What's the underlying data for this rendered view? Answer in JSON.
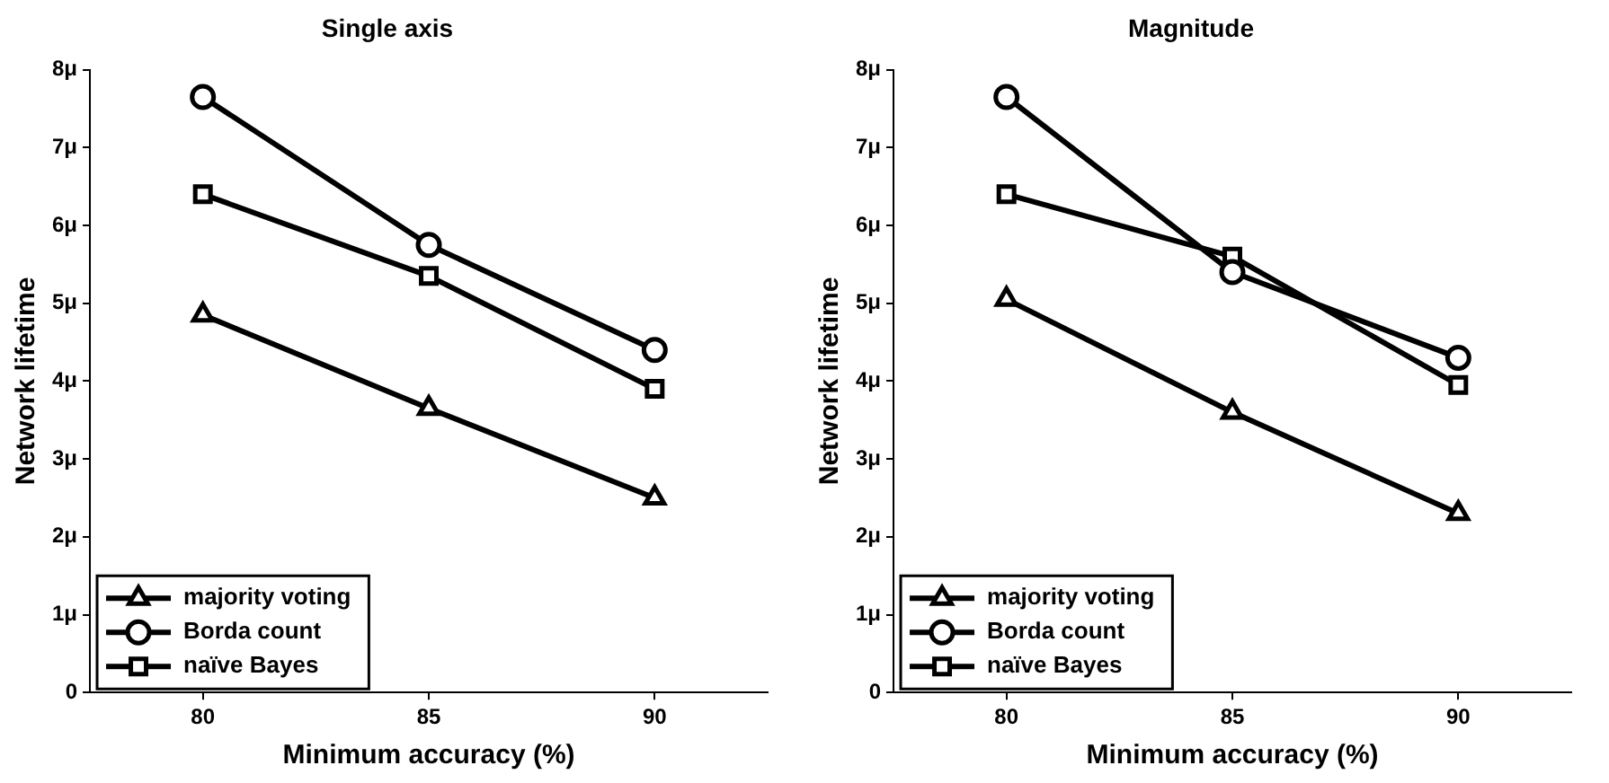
{
  "chart_data": [
    {
      "type": "line",
      "title": "Single axis",
      "xlabel": "Minimum accuracy (%)",
      "ylabel": "Network lifetime",
      "x": [
        80,
        85,
        90
      ],
      "xlim": [
        77.5,
        92.5
      ],
      "xticks": [
        80,
        85,
        90
      ],
      "ylim": [
        0,
        8
      ],
      "yticks": [
        0,
        {
          "value": 1,
          "label": "1μ"
        },
        {
          "value": 2,
          "label": "2μ"
        },
        {
          "value": 3,
          "label": "3μ"
        },
        {
          "value": 4,
          "label": "4μ"
        },
        {
          "value": 5,
          "label": "5μ"
        },
        {
          "value": 6,
          "label": "6μ"
        },
        {
          "value": 7,
          "label": "7μ"
        },
        {
          "value": 8,
          "label": "8μ"
        }
      ],
      "grid": false,
      "legend": "bottom left",
      "line_style": "solid",
      "series": [
        {
          "name": "majority voting",
          "color": "#000000",
          "marker": "triangle",
          "values": [
            4.85,
            3.65,
            2.5
          ]
        },
        {
          "name": "Borda count",
          "color": "#000000",
          "marker": "circle",
          "values": [
            7.65,
            5.75,
            4.4
          ]
        },
        {
          "name": "naïve Bayes",
          "color": "#000000",
          "marker": "square",
          "values": [
            6.4,
            5.35,
            3.9
          ]
        }
      ]
    },
    {
      "type": "line",
      "title": "Magnitude",
      "xlabel": "Minimum accuracy (%)",
      "ylabel": "Network lifetime",
      "x": [
        80,
        85,
        90
      ],
      "xlim": [
        77.5,
        92.5
      ],
      "xticks": [
        80,
        85,
        90
      ],
      "ylim": [
        0,
        8
      ],
      "yticks": [
        0,
        {
          "value": 1,
          "label": "1μ"
        },
        {
          "value": 2,
          "label": "2μ"
        },
        {
          "value": 3,
          "label": "3μ"
        },
        {
          "value": 4,
          "label": "4μ"
        },
        {
          "value": 5,
          "label": "5μ"
        },
        {
          "value": 6,
          "label": "6μ"
        },
        {
          "value": 7,
          "label": "7μ"
        },
        {
          "value": 8,
          "label": "8μ"
        }
      ],
      "grid": false,
      "legend": "bottom left",
      "line_style": "solid",
      "series": [
        {
          "name": "majority voting",
          "color": "#000000",
          "marker": "triangle",
          "values": [
            5.05,
            3.6,
            2.3
          ]
        },
        {
          "name": "Borda count",
          "color": "#000000",
          "marker": "circle",
          "values": [
            7.65,
            5.4,
            4.3
          ]
        },
        {
          "name": "naïve Bayes",
          "color": "#000000",
          "marker": "square",
          "values": [
            6.4,
            5.6,
            3.95
          ]
        }
      ]
    }
  ]
}
